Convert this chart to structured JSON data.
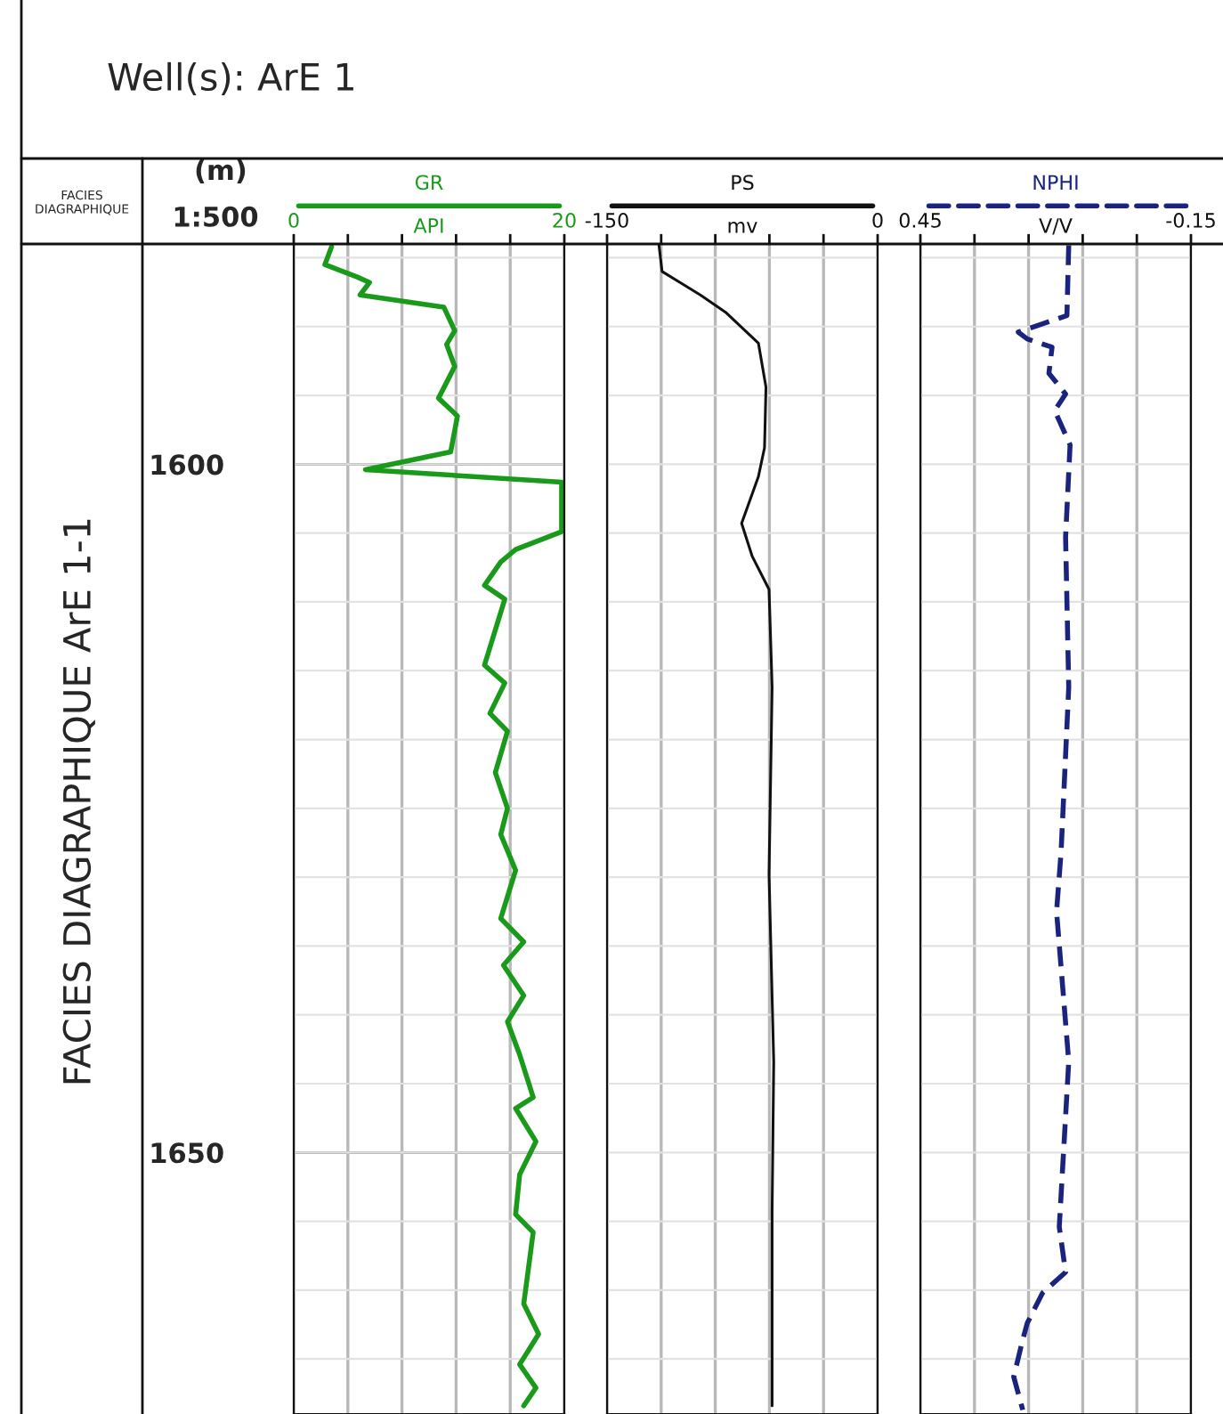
{
  "chart_data": [
    {
      "type": "line",
      "title": "GR",
      "xlabel": "API",
      "ylabel": "(m)",
      "annotations": [
        "Well(s): ArE 1",
        "FACIES DIAGRAPHIQUE",
        "FACIES DIAGRAPHIQUE ArE 1-1",
        "1:500"
      ],
      "series": [
        {
          "color": "#1a9a1a",
          "x": [
            2.8,
            2.3,
            4.7,
            5.6,
            4.9,
            11.1,
            11.9,
            11.3,
            11.9,
            10.7,
            12.1,
            11.6,
            5.3,
            19.8,
            19.8,
            16.4,
            15.3,
            14.1,
            15.6,
            14.1,
            15.6,
            14.5,
            15.8,
            14.9,
            15.8,
            15.3,
            16.4,
            15.3,
            17.0,
            15.5,
            17.0,
            15.8,
            16.7,
            17.7,
            16.4,
            17.9,
            16.7,
            16.4,
            17.7,
            17.0,
            18.1,
            16.7,
            17.9,
            17.0
          ],
          "values": [
            1584.2,
            1585.5,
            1586.4,
            1586.8,
            1587.7,
            1588.6,
            1590.3,
            1591.3,
            1592.9,
            1595.2,
            1596.5,
            1599.1,
            1600.4,
            1601.3,
            1604.9,
            1606.2,
            1607.1,
            1608.8,
            1609.8,
            1614.6,
            1615.9,
            1618.1,
            1619.4,
            1622.4,
            1625.0,
            1626.9,
            1629.5,
            1633.0,
            1634.7,
            1636.4,
            1638.6,
            1640.5,
            1642.9,
            1646.0,
            1646.8,
            1649.2,
            1651.6,
            1654.5,
            1655.8,
            1661.0,
            1663.2,
            1665.4,
            1667.1,
            1668.4
          ]
        }
      ],
      "xlim": [
        0,
        20
      ],
      "xticks": [
        0,
        {
          "value": 4,
          "label": null
        },
        {
          "value": 8,
          "label": null
        },
        {
          "value": 12,
          "label": null
        },
        {
          "value": 16,
          "label": null
        },
        20
      ],
      "ylim": [
        1669,
        1584
      ],
      "yticks": [
        {
          "value": 1585,
          "label": null
        },
        {
          "value": 1590,
          "label": null
        },
        {
          "value": 1595,
          "label": null
        },
        1600,
        {
          "value": 1605,
          "label": null
        },
        {
          "value": 1610,
          "label": null
        },
        {
          "value": 1615,
          "label": null
        },
        {
          "value": 1620,
          "label": null
        },
        {
          "value": 1625,
          "label": null
        },
        {
          "value": 1630,
          "label": null
        },
        {
          "value": 1635,
          "label": null
        },
        {
          "value": 1640,
          "label": null
        },
        {
          "value": 1645,
          "label": null
        },
        1650,
        {
          "value": 1655,
          "label": null
        },
        {
          "value": 1660,
          "label": null
        },
        {
          "value": 1665,
          "label": null
        }
      ],
      "grid": true,
      "line_style": "solid"
    },
    {
      "type": "line",
      "title": "PS",
      "xlabel": "mv",
      "series": [
        {
          "color": "#111111",
          "x": [
            -121.2,
            -119.5,
            -98.3,
            -83.9,
            -66.1,
            -61.9,
            -62.7,
            -66.1,
            -75.4,
            -69.5,
            -60.2,
            -58.5,
            -60.2,
            -57.6,
            -58.5,
            -58.5
          ],
          "values": [
            1584.1,
            1586.0,
            1587.7,
            1589.0,
            1591.2,
            1594.4,
            1598.8,
            1600.9,
            1604.3,
            1606.7,
            1609.1,
            1616.2,
            1629.8,
            1643.4,
            1654.3,
            1668.4
          ]
        }
      ],
      "xlim": [
        -150,
        0
      ],
      "xticks": [
        -150,
        {
          "value": -120,
          "label": null
        },
        {
          "value": -90,
          "label": null
        },
        {
          "value": -60,
          "label": null
        },
        {
          "value": -30,
          "label": null
        },
        0
      ],
      "ylim": [
        1669,
        1584
      ],
      "yticks": [
        {
          "value": 1585,
          "label": null
        },
        {
          "value": 1590,
          "label": null
        },
        {
          "value": 1595,
          "label": null
        },
        {
          "value": 1600,
          "label": null
        },
        {
          "value": 1605,
          "label": null
        },
        {
          "value": 1610,
          "label": null
        },
        {
          "value": 1615,
          "label": null
        },
        {
          "value": 1620,
          "label": null
        },
        {
          "value": 1625,
          "label": null
        },
        {
          "value": 1630,
          "label": null
        },
        {
          "value": 1635,
          "label": null
        },
        {
          "value": 1640,
          "label": null
        },
        {
          "value": 1645,
          "label": null
        },
        {
          "value": 1650,
          "label": null
        },
        {
          "value": 1655,
          "label": null
        },
        {
          "value": 1660,
          "label": null
        },
        {
          "value": 1665,
          "label": null
        }
      ],
      "tick_labels": "x",
      "grid": true,
      "line_style": "solid"
    },
    {
      "type": "line",
      "title": "NPHI",
      "xlabel": "V/V",
      "series": [
        {
          "color": "#1a237e",
          "x": [
            0.121,
            0.125,
            0.233,
            0.213,
            0.158,
            0.165,
            0.128,
            0.152,
            0.118,
            0.128,
            0.121,
            0.138,
            0.148,
            0.121,
            0.142,
            0.128,
            0.179,
            0.213,
            0.223,
            0.243,
            0.223
          ],
          "values": [
            1584.1,
            1589.2,
            1590.4,
            1590.9,
            1591.5,
            1593.4,
            1594.9,
            1596.1,
            1598.6,
            1605.3,
            1616.2,
            1628.2,
            1632.5,
            1643.4,
            1655.4,
            1658.7,
            1660.2,
            1662.4,
            1663.6,
            1666.3,
            1668.7
          ]
        }
      ],
      "xlim": [
        0.45,
        -0.15
      ],
      "xticks": [
        0.45,
        {
          "value": 0.33,
          "label": null
        },
        {
          "value": 0.21,
          "label": null
        },
        {
          "value": 0.09,
          "label": null
        },
        {
          "value": -0.03,
          "label": null
        },
        {
          "value": -0.15,
          "label": "-0.15"
        }
      ],
      "ylim": [
        1669,
        1584
      ],
      "yticks": [
        {
          "value": 1585,
          "label": null
        },
        {
          "value": 1590,
          "label": null
        },
        {
          "value": 1595,
          "label": null
        },
        {
          "value": 1600,
          "label": null
        },
        {
          "value": 1605,
          "label": null
        },
        {
          "value": 1610,
          "label": null
        },
        {
          "value": 1615,
          "label": null
        },
        {
          "value": 1620,
          "label": null
        },
        {
          "value": 1625,
          "label": null
        },
        {
          "value": 1630,
          "label": null
        },
        {
          "value": 1635,
          "label": null
        },
        {
          "value": 1640,
          "label": null
        },
        {
          "value": 1645,
          "label": null
        },
        {
          "value": 1650,
          "label": null
        },
        {
          "value": 1655,
          "label": null
        },
        {
          "value": 1660,
          "label": null
        },
        {
          "value": 1665,
          "label": null
        }
      ],
      "tick_labels": "x",
      "grid": true,
      "line_style": "dashed"
    }
  ]
}
